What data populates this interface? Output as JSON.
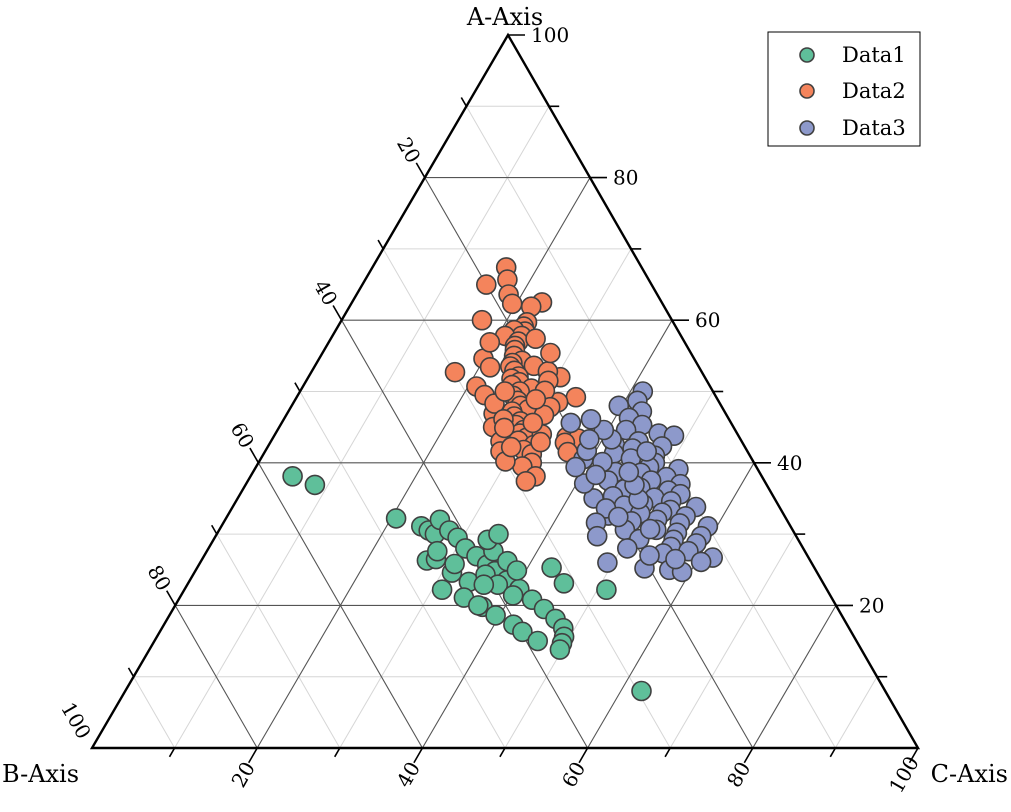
{
  "chart_data": {
    "type": "scatter",
    "subtype": "ternary",
    "axes": {
      "a_label": "A-Axis",
      "b_label": "B-Axis",
      "c_label": "C-Axis",
      "range": [
        0,
        100
      ],
      "ticks": [
        20,
        40,
        60,
        80,
        100
      ],
      "major_gridlines": true,
      "minor_gridlines": true
    },
    "legend": {
      "position": "top-right"
    },
    "colors": {
      "Data1": "#5fbf9a",
      "Data2": "#f4845c",
      "Data3": "#8d99cb",
      "edge": "#404040"
    },
    "series": [
      {
        "name": "Data1",
        "points": [
          {
            "a": 38.1,
            "b": 56.8
          },
          {
            "a": 36.9,
            "b": 54.7
          },
          {
            "a": 32.2,
            "b": 47.2
          },
          {
            "a": 31.1,
            "b": 44.7
          },
          {
            "a": 30.5,
            "b": 44.1
          },
          {
            "a": 30.0,
            "b": 43.6
          },
          {
            "a": 32.0,
            "b": 42.0
          },
          {
            "a": 30.5,
            "b": 41.6
          },
          {
            "a": 29.5,
            "b": 41.1
          },
          {
            "a": 28.0,
            "b": 40.9
          },
          {
            "a": 26.9,
            "b": 40.1
          },
          {
            "a": 25.7,
            "b": 39.4
          },
          {
            "a": 24.8,
            "b": 38.9
          },
          {
            "a": 23.5,
            "b": 38.1
          },
          {
            "a": 22.3,
            "b": 37.2
          },
          {
            "a": 20.8,
            "b": 36.4
          },
          {
            "a": 19.5,
            "b": 35.6
          },
          {
            "a": 18.1,
            "b": 34.9
          },
          {
            "a": 16.8,
            "b": 34.6
          },
          {
            "a": 15.6,
            "b": 35.1
          },
          {
            "a": 14.7,
            "b": 35.8
          },
          {
            "a": 13.8,
            "b": 36.5
          },
          {
            "a": 23.3,
            "b": 42.8
          },
          {
            "a": 24.6,
            "b": 44.2
          },
          {
            "a": 19.8,
            "b": 42.9
          },
          {
            "a": 21.1,
            "b": 44.5
          },
          {
            "a": 22.2,
            "b": 46.6
          },
          {
            "a": 20.0,
            "b": 43.3
          },
          {
            "a": 18.6,
            "b": 41.9
          },
          {
            "a": 17.3,
            "b": 40.4
          },
          {
            "a": 16.3,
            "b": 39.8
          },
          {
            "a": 15.0,
            "b": 38.6
          },
          {
            "a": 26.3,
            "b": 46.4
          },
          {
            "a": 26.5,
            "b": 45.2
          },
          {
            "a": 27.6,
            "b": 44.5
          },
          {
            "a": 24.3,
            "b": 40.3
          },
          {
            "a": 22.9,
            "b": 39.5
          },
          {
            "a": 21.4,
            "b": 38.4
          },
          {
            "a": 27.6,
            "b": 37.7
          },
          {
            "a": 26.2,
            "b": 36.7
          },
          {
            "a": 24.9,
            "b": 36.2
          },
          {
            "a": 29.2,
            "b": 37.6
          },
          {
            "a": 30.0,
            "b": 35.9
          },
          {
            "a": 25.3,
            "b": 31.8
          },
          {
            "a": 23.1,
            "b": 31.4
          },
          {
            "a": 8.0,
            "b": 29.5
          },
          {
            "a": 22.2,
            "b": 26.7
          },
          {
            "a": 22.9,
            "b": 41.2
          },
          {
            "a": 25.8,
            "b": 43.3
          }
        ]
      },
      {
        "name": "Data2",
        "points": [
          {
            "a": 67.4,
            "b": 16.4
          },
          {
            "a": 65.0,
            "b": 20.0
          },
          {
            "a": 65.7,
            "b": 17.1
          },
          {
            "a": 63.6,
            "b": 18.0
          },
          {
            "a": 62.3,
            "b": 18.2
          },
          {
            "a": 62.5,
            "b": 14.5
          },
          {
            "a": 61.9,
            "b": 16.1
          },
          {
            "a": 59.7,
            "b": 17.7
          },
          {
            "a": 59.1,
            "b": 18.4
          },
          {
            "a": 58.4,
            "b": 18.6
          },
          {
            "a": 58.6,
            "b": 19.8
          },
          {
            "a": 57.8,
            "b": 19.3
          },
          {
            "a": 57.8,
            "b": 21.3
          },
          {
            "a": 57.0,
            "b": 20.1
          },
          {
            "a": 56.4,
            "b": 20.8
          },
          {
            "a": 55.8,
            "b": 21.1
          },
          {
            "a": 55.0,
            "b": 21.6
          },
          {
            "a": 54.3,
            "b": 21.0
          },
          {
            "a": 54.0,
            "b": 22.3
          },
          {
            "a": 53.6,
            "b": 19.9
          },
          {
            "a": 53.5,
            "b": 22.8
          },
          {
            "a": 52.9,
            "b": 22.6
          },
          {
            "a": 52.1,
            "b": 22.5
          },
          {
            "a": 51.8,
            "b": 23.5
          },
          {
            "a": 51.3,
            "b": 22.8
          },
          {
            "a": 50.9,
            "b": 23.9
          },
          {
            "a": 50.4,
            "b": 21.8
          },
          {
            "a": 50.0,
            "b": 23.4
          },
          {
            "a": 49.4,
            "b": 24.5
          },
          {
            "a": 48.7,
            "b": 24.3
          },
          {
            "a": 48.0,
            "b": 24.3
          },
          {
            "a": 47.5,
            "b": 23.6
          },
          {
            "a": 47.2,
            "b": 25.7
          },
          {
            "a": 46.5,
            "b": 25.8
          },
          {
            "a": 45.8,
            "b": 25.4
          },
          {
            "a": 45.3,
            "b": 26.2
          },
          {
            "a": 44.6,
            "b": 25.6
          },
          {
            "a": 44.1,
            "b": 26.3
          },
          {
            "a": 43.5,
            "b": 25.8
          },
          {
            "a": 43.1,
            "b": 27.0
          },
          {
            "a": 42.5,
            "b": 25.4
          },
          {
            "a": 41.8,
            "b": 27.0
          },
          {
            "a": 41.2,
            "b": 26.3
          },
          {
            "a": 40.0,
            "b": 26.9
          },
          {
            "a": 39.5,
            "b": 28.3
          },
          {
            "a": 38.1,
            "b": 27.4
          },
          {
            "a": 37.4,
            "b": 28.9
          },
          {
            "a": 52.0,
            "b": 17.5
          },
          {
            "a": 49.2,
            "b": 17.0
          },
          {
            "a": 48.5,
            "b": 19.5
          },
          {
            "a": 54.6,
            "b": 25.5
          },
          {
            "a": 56.9,
            "b": 23.6
          },
          {
            "a": 60.0,
            "b": 23.0
          },
          {
            "a": 46.9,
            "b": 28.1
          },
          {
            "a": 45.0,
            "b": 29.1
          },
          {
            "a": 43.0,
            "b": 29.2
          },
          {
            "a": 41.6,
            "b": 29.9
          },
          {
            "a": 40.2,
            "b": 30.0
          },
          {
            "a": 52.7,
            "b": 29.9
          },
          {
            "a": 50.7,
            "b": 28.3
          },
          {
            "a": 49.5,
            "b": 27.9
          },
          {
            "a": 48.3,
            "b": 27.3
          },
          {
            "a": 46.1,
            "b": 27.3
          },
          {
            "a": 44.9,
            "b": 27.8
          },
          {
            "a": 42.2,
            "b": 28.3
          },
          {
            "a": 52.8,
            "b": 18.6
          },
          {
            "a": 51.5,
            "b": 19.2
          },
          {
            "a": 50.1,
            "b": 20.3
          },
          {
            "a": 55.4,
            "b": 17.0
          },
          {
            "a": 57.4,
            "b": 17.8
          },
          {
            "a": 47.8,
            "b": 20.8
          },
          {
            "a": 46.7,
            "b": 22.1
          },
          {
            "a": 44.0,
            "b": 23.7
          },
          {
            "a": 42.9,
            "b": 24.4
          },
          {
            "a": 48.9,
            "b": 22.0
          },
          {
            "a": 53.4,
            "b": 25.3
          },
          {
            "a": 50.0,
            "b": 25.2
          },
          {
            "a": 45.6,
            "b": 24.0
          },
          {
            "a": 43.6,
            "b": 20.9
          },
          {
            "a": 43.4,
            "b": 19.6
          },
          {
            "a": 42.8,
            "b": 21.5
          },
          {
            "a": 41.5,
            "b": 21.8
          }
        ]
      },
      {
        "name": "Data3",
        "points": [
          {
            "a": 50.0,
            "b": 8.5
          },
          {
            "a": 48.7,
            "b": 9.8
          },
          {
            "a": 48.0,
            "b": 12.4
          },
          {
            "a": 47.2,
            "b": 10.0
          },
          {
            "a": 46.3,
            "b": 12.0
          },
          {
            "a": 45.3,
            "b": 10.9
          },
          {
            "a": 44.6,
            "b": 13.2
          },
          {
            "a": 44.1,
            "b": 9.5
          },
          {
            "a": 43.8,
            "b": 7.8
          },
          {
            "a": 43.0,
            "b": 12.5
          },
          {
            "a": 42.5,
            "b": 15.6
          },
          {
            "a": 42.3,
            "b": 10.0
          },
          {
            "a": 42.0,
            "b": 13.7
          },
          {
            "a": 41.3,
            "b": 16.3
          },
          {
            "a": 41.0,
            "b": 11.5
          },
          {
            "a": 40.6,
            "b": 14.6
          },
          {
            "a": 40.0,
            "b": 12.0
          },
          {
            "a": 39.4,
            "b": 13.0
          },
          {
            "a": 39.1,
            "b": 9.6
          },
          {
            "a": 38.6,
            "b": 14.4
          },
          {
            "a": 38.0,
            "b": 11.6
          },
          {
            "a": 37.5,
            "b": 13.7
          },
          {
            "a": 37.0,
            "b": 10.4
          },
          {
            "a": 36.5,
            "b": 15.5
          },
          {
            "a": 36.1,
            "b": 12.3
          },
          {
            "a": 35.6,
            "b": 11.1
          },
          {
            "a": 35.1,
            "b": 14.5
          },
          {
            "a": 34.6,
            "b": 12.7
          },
          {
            "a": 34.2,
            "b": 16.3
          },
          {
            "a": 33.8,
            "b": 10.1
          },
          {
            "a": 33.4,
            "b": 13.4
          },
          {
            "a": 33.0,
            "b": 14.6
          },
          {
            "a": 32.5,
            "b": 12.0
          },
          {
            "a": 32.0,
            "b": 15.7
          },
          {
            "a": 31.5,
            "b": 13.2
          },
          {
            "a": 31.1,
            "b": 10.0
          },
          {
            "a": 30.6,
            "b": 16.5
          },
          {
            "a": 30.2,
            "b": 14.2
          },
          {
            "a": 29.7,
            "b": 11.5
          },
          {
            "a": 29.2,
            "b": 15.1
          },
          {
            "a": 28.7,
            "b": 12.6
          },
          {
            "a": 28.2,
            "b": 15.9
          },
          {
            "a": 27.6,
            "b": 14.1
          },
          {
            "a": 27.3,
            "b": 17.3
          },
          {
            "a": 26.7,
            "b": 11.6
          },
          {
            "a": 26.1,
            "b": 13.3
          },
          {
            "a": 40.5,
            "b": 20.4
          },
          {
            "a": 38.7,
            "b": 17.4
          },
          {
            "a": 37.5,
            "b": 18.9
          },
          {
            "a": 36.3,
            "b": 17.5
          },
          {
            "a": 35.3,
            "b": 19.4
          },
          {
            "a": 34.0,
            "b": 18.7
          },
          {
            "a": 32.9,
            "b": 17.3
          },
          {
            "a": 31.8,
            "b": 18.9
          },
          {
            "a": 30.6,
            "b": 20.3
          },
          {
            "a": 29.3,
            "b": 19.2
          },
          {
            "a": 28.0,
            "b": 21.3
          },
          {
            "a": 26.0,
            "b": 24.7
          },
          {
            "a": 25.2,
            "b": 20.6
          },
          {
            "a": 25.0,
            "b": 17.7
          },
          {
            "a": 24.7,
            "b": 16.3
          },
          {
            "a": 26.5,
            "b": 16.2
          },
          {
            "a": 27.0,
            "b": 19.1
          },
          {
            "a": 30.7,
            "b": 17.2
          },
          {
            "a": 32.6,
            "b": 21.3
          },
          {
            "a": 35.0,
            "b": 21.9
          },
          {
            "a": 37.1,
            "b": 22.0
          },
          {
            "a": 39.4,
            "b": 21.9
          },
          {
            "a": 41.7,
            "b": 19.4
          },
          {
            "a": 43.3,
            "b": 15.6
          },
          {
            "a": 44.6,
            "b": 15.9
          },
          {
            "a": 46.1,
            "b": 16.7
          },
          {
            "a": 45.6,
            "b": 19.4
          },
          {
            "a": 43.3,
            "b": 18.3
          },
          {
            "a": 40.1,
            "b": 18.3
          },
          {
            "a": 33.6,
            "b": 21.1
          },
          {
            "a": 31.6,
            "b": 23.3
          },
          {
            "a": 29.7,
            "b": 24.1
          },
          {
            "a": 32.4,
            "b": 20.2
          },
          {
            "a": 34.9,
            "b": 16.5
          },
          {
            "a": 36.9,
            "b": 16.0
          },
          {
            "a": 38.7,
            "b": 15.8
          },
          {
            "a": 41.6,
            "b": 12.2
          },
          {
            "a": 38.3,
            "b": 20.0
          }
        ]
      }
    ]
  }
}
